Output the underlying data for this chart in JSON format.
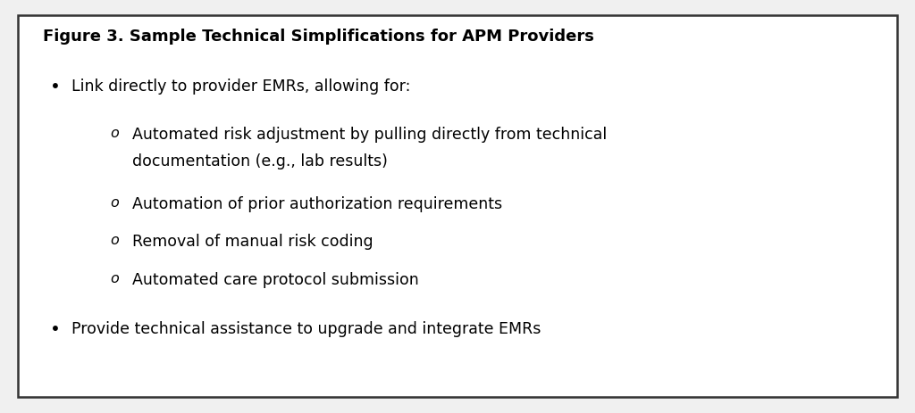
{
  "title": "Figure 3. Sample Technical Simplifications for APM Providers",
  "background_color": "#f0f0f0",
  "box_color": "#ffffff",
  "border_color": "#333333",
  "text_color": "#000000",
  "title_fontsize": 13.0,
  "body_fontsize": 12.5,
  "font_family": "DejaVu Sans",
  "bullet1": "Link directly to provider EMRs, allowing for:",
  "sub_bullet1_line1": "Automated risk adjustment by pulling directly from technical",
  "sub_bullet1_line2": "documentation (e.g., lab results)",
  "sub_bullet2": "Automation of prior authorization requirements",
  "sub_bullet3": "Removal of manual risk coding",
  "sub_bullet4": "Automated care protocol submission",
  "bullet2": "Provide technical assistance to upgrade and integrate EMRs",
  "fig_width": 10.24,
  "fig_height": 4.64,
  "dpi": 100
}
